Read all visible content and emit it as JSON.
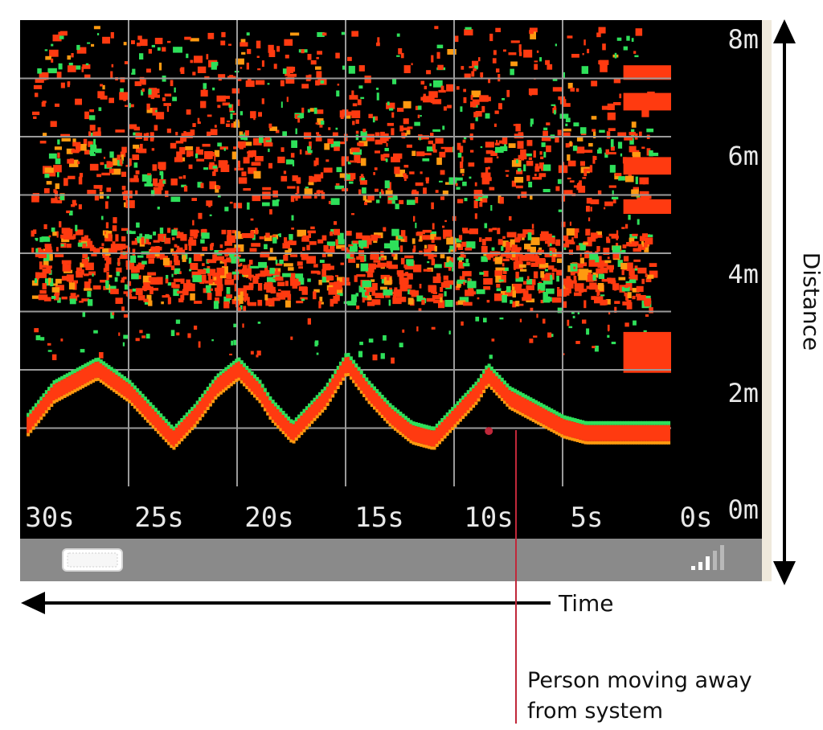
{
  "colors": {
    "background": "#000000",
    "grid": "#9a9a9a",
    "echo_high": "#ff3a10",
    "echo_mid": "#ff9a10",
    "echo_edge": "#2ee05a",
    "status_bar": "#8a8a8a",
    "frame": "#efe9dc",
    "marker": "#c0283a"
  },
  "icons": {
    "battery": "battery-icon",
    "signal": "signal-bars-icon"
  },
  "annotations": {
    "time_label": "Time",
    "distance_label": "Distance",
    "callout": [
      "Person moving away",
      "from system"
    ]
  },
  "chart_data": {
    "type": "heatmap",
    "title": "",
    "xlabel": "Time",
    "ylabel": "Distance",
    "x_ticks": [
      "30s",
      "25s",
      "20s",
      "15s",
      "10s",
      "5s",
      "0s"
    ],
    "y_ticks": [
      "8m",
      "6m",
      "4m",
      "2m",
      "0m"
    ],
    "xlim": [
      30,
      0
    ],
    "ylim": [
      0,
      8
    ],
    "grid": true,
    "bands": [
      {
        "name": "",
        "y_center": 3.8,
        "thickness": 0.8,
        "density": 0.9
      },
      {
        "name": "",
        "y_center": 5.5,
        "thickness": 0.8,
        "density": 0.35
      },
      {
        "name": "",
        "y_center": 7.0,
        "thickness": 1.6,
        "density": 0.15
      }
    ],
    "person_track": {
      "x": [
        30,
        28.5,
        26.5,
        25,
        24,
        23,
        22,
        21,
        20,
        19,
        18.5,
        17.5,
        16,
        15,
        14,
        13,
        12,
        11,
        10,
        9,
        8.5,
        7.5,
        6,
        5,
        4,
        3,
        2,
        1,
        0
      ],
      "y": [
        0.9,
        1.6,
        2.0,
        1.6,
        1.2,
        0.8,
        1.2,
        1.7,
        2.0,
        1.6,
        1.3,
        0.9,
        1.5,
        2.1,
        1.6,
        1.2,
        0.9,
        0.8,
        1.2,
        1.6,
        1.9,
        1.5,
        1.2,
        1.0,
        0.9,
        0.9,
        0.9,
        0.9,
        0.9
      ]
    },
    "marker": {
      "x": 8.4,
      "y": 0.95
    }
  }
}
